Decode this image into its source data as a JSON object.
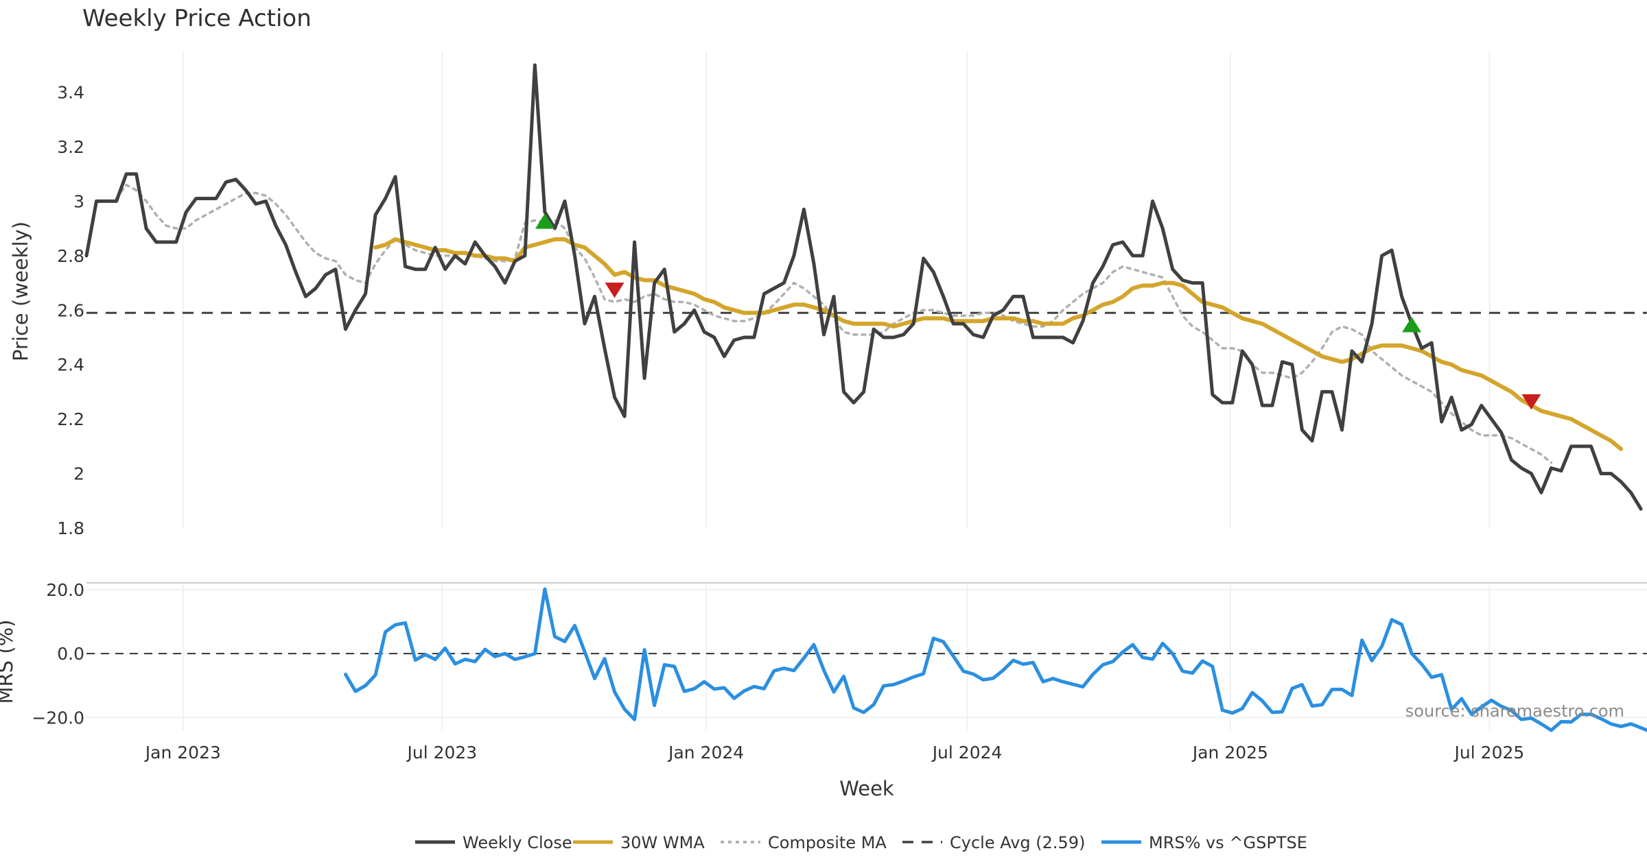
{
  "chart_data": [
    {
      "type": "line",
      "title": "Weekly Price Action",
      "xlabel": "",
      "ylabel": "Price (weekly)",
      "ylim": [
        1.8,
        3.55
      ],
      "yticks": [
        1.8,
        2,
        2.2,
        2.4,
        2.6,
        2.8,
        3,
        3.2,
        3.4
      ],
      "ytick_labels": [
        "1.8",
        "2",
        "2.2",
        "2.4",
        "2.6",
        "2.8",
        "3",
        "3.2",
        "3.4"
      ],
      "x_start_index": 0,
      "series": [
        {
          "name": "Weekly Close",
          "color": "#404040",
          "start_week": 0,
          "values": [
            2.8,
            3.0,
            3.0,
            3.0,
            3.1,
            3.1,
            2.9,
            2.85,
            2.85,
            2.85,
            2.96,
            3.01,
            3.01,
            3.01,
            3.07,
            3.08,
            3.04,
            2.99,
            3.0,
            2.91,
            2.84,
            2.74,
            2.65,
            2.68,
            2.73,
            2.75,
            2.53,
            2.6,
            2.66,
            2.95,
            3.01,
            3.09,
            2.76,
            2.75,
            2.75,
            2.83,
            2.75,
            2.8,
            2.77,
            2.85,
            2.8,
            2.76,
            2.7,
            2.78,
            2.8,
            3.5,
            2.96,
            2.9,
            3.0,
            2.8,
            2.55,
            2.65,
            2.46,
            2.28,
            2.21,
            2.85,
            2.35,
            2.7,
            2.75,
            2.52,
            2.55,
            2.6,
            2.52,
            2.5,
            2.43,
            2.49,
            2.5,
            2.5,
            2.66,
            2.68,
            2.7,
            2.8,
            2.97,
            2.77,
            2.51,
            2.65,
            2.3,
            2.26,
            2.3,
            2.53,
            2.5,
            2.5,
            2.51,
            2.55,
            2.79,
            2.74,
            2.65,
            2.55,
            2.55,
            2.51,
            2.5,
            2.58,
            2.6,
            2.65,
            2.65,
            2.5,
            2.5,
            2.5,
            2.5,
            2.48,
            2.56,
            2.7,
            2.76,
            2.84,
            2.85,
            2.8,
            2.8,
            3.0,
            2.9,
            2.75,
            2.71,
            2.7,
            2.7,
            2.29,
            2.26,
            2.26,
            2.45,
            2.4,
            2.25,
            2.25,
            2.41,
            2.4,
            2.16,
            2.12,
            2.3,
            2.3,
            2.16,
            2.45,
            2.41,
            2.55,
            2.8,
            2.82,
            2.65,
            2.55,
            2.46,
            2.48,
            2.19,
            2.28,
            2.16,
            2.18,
            2.25,
            2.2,
            2.15,
            2.05,
            2.02,
            2.0,
            1.93,
            2.02,
            2.01,
            2.1,
            2.1,
            2.1,
            2.0,
            2.0,
            1.97,
            1.93,
            1.87
          ]
        },
        {
          "name": "30W WMA",
          "color": "#d4a52c",
          "start_week": 29,
          "values": [
            2.83,
            2.84,
            2.86,
            2.85,
            2.84,
            2.83,
            2.82,
            2.82,
            2.81,
            2.81,
            2.8,
            2.8,
            2.79,
            2.79,
            2.78,
            2.83,
            2.84,
            2.85,
            2.86,
            2.86,
            2.84,
            2.83,
            2.8,
            2.77,
            2.73,
            2.74,
            2.72,
            2.71,
            2.71,
            2.69,
            2.68,
            2.67,
            2.66,
            2.64,
            2.63,
            2.61,
            2.6,
            2.59,
            2.59,
            2.59,
            2.6,
            2.61,
            2.62,
            2.62,
            2.61,
            2.6,
            2.58,
            2.56,
            2.55,
            2.55,
            2.55,
            2.55,
            2.54,
            2.55,
            2.56,
            2.57,
            2.57,
            2.57,
            2.56,
            2.56,
            2.56,
            2.56,
            2.57,
            2.57,
            2.57,
            2.56,
            2.56,
            2.55,
            2.55,
            2.55,
            2.57,
            2.58,
            2.6,
            2.62,
            2.63,
            2.65,
            2.68,
            2.69,
            2.69,
            2.7,
            2.7,
            2.69,
            2.66,
            2.63,
            2.62,
            2.61,
            2.59,
            2.57,
            2.56,
            2.55,
            2.53,
            2.51,
            2.49,
            2.47,
            2.45,
            2.43,
            2.42,
            2.41,
            2.42,
            2.44,
            2.46,
            2.47,
            2.47,
            2.47,
            2.46,
            2.45,
            2.43,
            2.41,
            2.4,
            2.38,
            2.37,
            2.36,
            2.34,
            2.32,
            2.3,
            2.27,
            2.25,
            2.23,
            2.22,
            2.21,
            2.2,
            2.18,
            2.16,
            2.14,
            2.12,
            2.09
          ]
        },
        {
          "name": "Composite MA",
          "color": "#b0b0b0",
          "start_week": 3,
          "values": [
            3.01,
            3.06,
            3.04,
            3.0,
            2.95,
            2.91,
            2.9,
            2.9,
            2.93,
            2.95,
            2.97,
            2.99,
            3.01,
            3.03,
            3.03,
            3.02,
            2.99,
            2.95,
            2.9,
            2.85,
            2.81,
            2.79,
            2.78,
            2.73,
            2.71,
            2.7,
            2.77,
            2.82,
            2.86,
            2.84,
            2.82,
            2.81,
            2.8,
            2.8,
            2.8,
            2.81,
            2.8,
            2.79,
            2.78,
            2.78,
            2.79,
            2.92,
            2.93,
            2.92,
            2.93,
            2.9,
            2.83,
            2.79,
            2.72,
            2.64,
            2.63,
            2.64,
            2.63,
            2.65,
            2.66,
            2.64,
            2.63,
            2.63,
            2.62,
            2.6,
            2.58,
            2.57,
            2.56,
            2.56,
            2.57,
            2.59,
            2.62,
            2.66,
            2.7,
            2.68,
            2.65,
            2.62,
            2.57,
            2.52,
            2.51,
            2.51,
            2.51,
            2.52,
            2.55,
            2.57,
            2.59,
            2.6,
            2.6,
            2.59,
            2.58,
            2.58,
            2.58,
            2.59,
            2.59,
            2.58,
            2.56,
            2.55,
            2.54,
            2.54,
            2.56,
            2.6,
            2.63,
            2.66,
            2.68,
            2.7,
            2.74,
            2.76,
            2.75,
            2.74,
            2.73,
            2.72,
            2.65,
            2.58,
            2.54,
            2.52,
            2.49,
            2.46,
            2.46,
            2.45,
            2.4,
            2.37,
            2.37,
            2.36,
            2.35,
            2.37,
            2.41,
            2.46,
            2.52,
            2.54,
            2.53,
            2.51,
            2.45,
            2.42,
            2.39,
            2.36,
            2.34,
            2.32,
            2.3,
            2.26,
            2.22,
            2.19,
            2.16,
            2.14,
            2.14,
            2.14,
            2.13,
            2.11,
            2.09,
            2.07,
            2.04
          ]
        },
        {
          "name": "Cycle Avg (2.59)",
          "color": "#404040",
          "constant": 2.59
        }
      ],
      "markers": [
        {
          "type": "buy",
          "shape": "triangle-up",
          "color": "#1a9e1a",
          "week": 46,
          "value": 2.92
        },
        {
          "type": "sell",
          "shape": "triangle-down",
          "color": "#c81e1e",
          "week": 53,
          "value": 2.68
        },
        {
          "type": "buy",
          "shape": "triangle-up",
          "color": "#1a9e1a",
          "week": 133,
          "value": 2.54
        },
        {
          "type": "sell",
          "shape": "triangle-down",
          "color": "#c81e1e",
          "week": 145,
          "value": 2.27
        }
      ]
    },
    {
      "type": "line",
      "title": "",
      "xlabel": "Week",
      "ylabel": "MRS (%)",
      "ylim": [
        -24,
        21.5
      ],
      "yticks": [
        -20,
        0,
        20
      ],
      "ytick_labels": [
        "−20.0",
        "0.0",
        "20.0"
      ],
      "zero_line": 0,
      "series": [
        {
          "name": "MRS% vs ^GSPTSE",
          "color": "#2b8fe0",
          "start_week": 26,
          "values": [
            -6.5,
            -11.8,
            -10.0,
            -6.7,
            6.8,
            9.0,
            9.6,
            -2.0,
            -0.3,
            -1.8,
            1.7,
            -3.2,
            -1.8,
            -2.5,
            1.3,
            -0.9,
            0.0,
            -1.8,
            -1.0,
            0.0,
            20.2,
            5.3,
            3.8,
            8.8,
            0.6,
            -7.8,
            -1.6,
            -12.0,
            -17.4,
            -20.6,
            1.2,
            -16.2,
            -3.5,
            -4.0,
            -11.8,
            -11.0,
            -8.8,
            -11.1,
            -10.7,
            -14.0,
            -11.7,
            -10.3,
            -11.0,
            -5.4,
            -4.6,
            -5.3,
            -1.4,
            2.8,
            -5.2,
            -12.0,
            -7.1,
            -17.0,
            -18.4,
            -16.0,
            -10.1,
            -9.7,
            -8.6,
            -7.3,
            -6.3,
            4.8,
            3.7,
            -0.8,
            -5.5,
            -6.4,
            -8.2,
            -7.7,
            -5.2,
            -2.1,
            -3.3,
            -2.8,
            -8.8,
            -7.8,
            -8.8,
            -9.6,
            -10.4,
            -6.5,
            -3.5,
            -2.5,
            0.5,
            2.8,
            -1.2,
            -1.7,
            3.2,
            0.0,
            -5.5,
            -6.1,
            -2.3,
            -4.0,
            -17.7,
            -18.6,
            -17.2,
            -12.2,
            -14.8,
            -18.4,
            -18.2,
            -10.9,
            -9.7,
            -16.4,
            -16.0,
            -11.2,
            -11.2,
            -13.1,
            4.2,
            -2.2,
            2.3,
            10.6,
            9.1,
            0.0,
            -3.3,
            -7.4,
            -6.6,
            -17.5,
            -14.1,
            -19.0,
            -16.7,
            -14.6,
            -16.5,
            -17.8,
            -20.6,
            -20.2,
            -22.0,
            -24.0,
            -21.3,
            -21.4,
            -19.0,
            -19.0,
            -20.4,
            -22.0,
            -22.8,
            -22.0,
            -23.2,
            -24.5
          ]
        }
      ]
    }
  ],
  "x_axis": {
    "ticks": [
      {
        "label": "Jan 2023",
        "week": 9.7
      },
      {
        "label": "Jul 2023",
        "week": 35.7
      },
      {
        "label": "Jan 2024",
        "week": 62.2
      },
      {
        "label": "Jul 2024",
        "week": 88.4
      },
      {
        "label": "Jan 2025",
        "week": 114.8
      },
      {
        "label": "Jul 2025",
        "week": 140.8
      }
    ],
    "week_count": 160
  },
  "legend": {
    "position": "bottom-center",
    "items": [
      {
        "label": "Weekly Close",
        "color": "#404040",
        "style": "solid"
      },
      {
        "label": "30W WMA",
        "color": "#d4a52c",
        "style": "solid"
      },
      {
        "label": "Composite MA",
        "color": "#b0b0b0",
        "style": "dotted"
      },
      {
        "label": "Cycle Avg (2.59)",
        "color": "#404040",
        "style": "dashed"
      },
      {
        "label": "MRS% vs ^GSPTSE",
        "color": "#2b8fe0",
        "style": "solid"
      }
    ]
  },
  "watermark": "source: sharemaestro.com"
}
